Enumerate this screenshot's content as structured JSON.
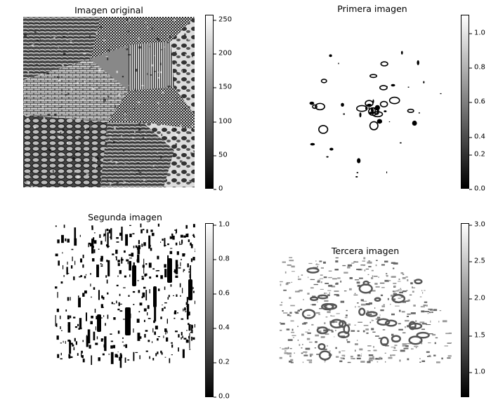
{
  "panels": [
    {
      "title": "Imagen original",
      "colorbar": {
        "ticks": [
          "250",
          "200",
          "150",
          "100",
          "50",
          "0"
        ],
        "range": [
          0,
          255
        ]
      }
    },
    {
      "title": "Primera imagen",
      "colorbar": {
        "ticks": [
          "1.0",
          "0.8",
          "0.6",
          "0.4",
          "0.2",
          "0.0"
        ],
        "range": [
          0,
          1
        ]
      }
    },
    {
      "title": "Segunda imagen",
      "colorbar": {
        "ticks": [
          "1.0",
          "0.8",
          "0.6",
          "0.4",
          "0.2",
          "0.0"
        ],
        "range": [
          0,
          1
        ]
      }
    },
    {
      "title": "Tercera imagen",
      "colorbar": {
        "ticks": [
          "3.0",
          "2.5",
          "2.0",
          "1.5",
          "1.0"
        ],
        "range": [
          0.65,
          3.0
        ]
      }
    }
  ]
}
